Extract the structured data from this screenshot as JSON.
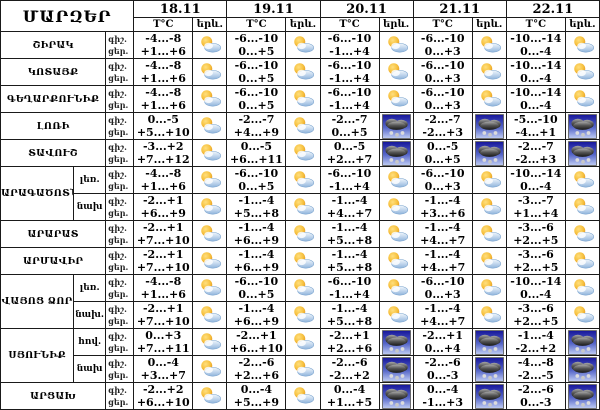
{
  "table": {
    "title": "ՄԱՐԶԵՐ",
    "dates": [
      "18.11",
      "19.11",
      "20.11",
      "21.11",
      "22.11"
    ],
    "col_temp_label": "T°C",
    "col_phenomenon_label": "երև.",
    "night_label": "գիշ.",
    "day_label": "ցեր.",
    "icon_legend": {
      "pc": "partly-cloudy",
      "snow": "snow-shower"
    },
    "colors": {
      "border": "#1a1a1a",
      "background": "#ffffff",
      "sun": "#f7c240",
      "cloud_light": "#c9dcf1",
      "snow_bg_top": "#16169a",
      "snow_bg_bottom": "#c0cdf3",
      "snow_cloud": "#3a3a3a"
    },
    "groups": [
      {
        "region": "ՇԻՐԱԿ",
        "rows": [
          {
            "sub": "",
            "night": [
              "-4...-8",
              "-6...-10",
              "-6...-10",
              "-6...-10",
              "-10...-14"
            ],
            "day": [
              "+1...+6",
              "0...+5",
              "-1...+4",
              "0...+3",
              "0...-4"
            ],
            "icons": [
              "pc",
              "pc",
              "pc",
              "pc",
              "pc"
            ]
          }
        ]
      },
      {
        "region": "ԿՈՏԱՅՔ",
        "rows": [
          {
            "sub": "",
            "night": [
              "-4...-8",
              "-6...-10",
              "-6...-10",
              "-6...-10",
              "-10...-14"
            ],
            "day": [
              "+1...+6",
              "0...+5",
              "-1...+4",
              "0...+3",
              "0...-4"
            ],
            "icons": [
              "pc",
              "pc",
              "pc",
              "pc",
              "pc"
            ]
          }
        ]
      },
      {
        "region": "ԳԵՂԱՐՔՈՒՆԻՔ",
        "rows": [
          {
            "sub": "",
            "night": [
              "-4...-8",
              "-6...-10",
              "-6...-10",
              "-6...-10",
              "-10...-14"
            ],
            "day": [
              "+1...+6",
              "0...+5",
              "-1...+4",
              "0...+3",
              "0...-4"
            ],
            "icons": [
              "pc",
              "pc",
              "pc",
              "pc",
              "pc"
            ]
          }
        ]
      },
      {
        "region": "ԼՈՌԻ",
        "rows": [
          {
            "sub": "",
            "night": [
              "0...-5",
              "-2...-7",
              "-2...-7",
              "-2...-7",
              "-5...-10"
            ],
            "day": [
              "+5...+10",
              "+4...+9",
              "0...+5",
              "-2...+3",
              "-4...+1"
            ],
            "icons": [
              "pc",
              "pc",
              "snow",
              "snow",
              "snow"
            ]
          }
        ]
      },
      {
        "region": "ՏԱՎՈՒՇ",
        "rows": [
          {
            "sub": "",
            "night": [
              "-3...+2",
              "0...-5",
              "0...-5",
              "0...-5",
              "-2...-7"
            ],
            "day": [
              "+7...+12",
              "+6...+11",
              "+2...+7",
              "0...+5",
              "-2...+3"
            ],
            "icons": [
              "pc",
              "pc",
              "snow",
              "snow",
              "snow"
            ]
          }
        ]
      },
      {
        "region": "ԱՐԱԳԱԾՈՏՆ",
        "rows": [
          {
            "sub": "լեռ.",
            "night": [
              "-4...-8",
              "-6...-10",
              "-6...-10",
              "-6...-10",
              "-10...-14"
            ],
            "day": [
              "+1...+6",
              "0...+5",
              "-1...+4",
              "0...+3",
              "0...-4"
            ],
            "icons": [
              "pc",
              "pc",
              "pc",
              "pc",
              "pc"
            ]
          },
          {
            "sub": "նախ",
            "night": [
              "-2...+1",
              "-1...-4",
              "-1...-4",
              "-1...-4",
              "-3...-7"
            ],
            "day": [
              "+6...+9",
              "+5...+8",
              "+4...+7",
              "+3...+6",
              "+1...+4"
            ],
            "icons": [
              "pc",
              "pc",
              "pc",
              "pc",
              "pc"
            ]
          }
        ]
      },
      {
        "region": "ԱՐԱՐԱՏ",
        "rows": [
          {
            "sub": "",
            "night": [
              "-2...+1",
              "-1...-4",
              "-1...-4",
              "-1...-4",
              "-3...-6"
            ],
            "day": [
              "+7...+10",
              "+6...+9",
              "+5...+8",
              "+4...+7",
              "+2...+5"
            ],
            "icons": [
              "pc",
              "pc",
              "pc",
              "pc",
              "pc"
            ]
          }
        ]
      },
      {
        "region": "ԱՐՄԱՎԻՐ",
        "rows": [
          {
            "sub": "",
            "night": [
              "-2...+1",
              "-1...-4",
              "-1...-4",
              "-1...-4",
              "-3...-6"
            ],
            "day": [
              "+7...+10",
              "+6...+9",
              "+5...+8",
              "+4...+7",
              "+2...+5"
            ],
            "icons": [
              "pc",
              "pc",
              "pc",
              "pc",
              "pc"
            ]
          }
        ]
      },
      {
        "region": "ՎԱՅՈՑ ՁՈՐ",
        "rows": [
          {
            "sub": "լեռ.",
            "night": [
              "-4...-8",
              "-6...-10",
              "-6...-10",
              "-6...-10",
              "-10...-14"
            ],
            "day": [
              "+1...+6",
              "0...+5",
              "-1...+4",
              "0...+3",
              "0...-4"
            ],
            "icons": [
              "pc",
              "pc",
              "pc",
              "pc",
              "pc"
            ]
          },
          {
            "sub": "նախ.",
            "night": [
              "-2...+1",
              "-1...-4",
              "-1...-4",
              "-1...-4",
              "-3...-6"
            ],
            "day": [
              "+7...+10",
              "+6...+9",
              "+5...+8",
              "+4...+7",
              "+2...+5"
            ],
            "icons": [
              "pc",
              "pc",
              "pc",
              "pc",
              "pc"
            ]
          }
        ]
      },
      {
        "region": "ՍՅՈՒՆԻՔ",
        "rows": [
          {
            "sub": "հով.",
            "night": [
              "0...+3",
              "-2...+1",
              "-2...+1",
              "-2...+1",
              "-1...-4"
            ],
            "day": [
              "+7...+11",
              "+6...+10",
              "+2...+6",
              "0...+4",
              "-2...+2"
            ],
            "icons": [
              "pc",
              "pc",
              "snow",
              "snow",
              "snow"
            ]
          },
          {
            "sub": "նախ",
            "night": [
              "0...-4",
              "-2...-6",
              "-2...-6",
              "-2...-6",
              "-4...-8"
            ],
            "day": [
              "+3...+7",
              "+2...+6",
              "-2...+2",
              "0...-3",
              "-2...-5"
            ],
            "icons": [
              "pc",
              "pc",
              "snow",
              "snow",
              "snow"
            ]
          }
        ]
      },
      {
        "region": "ԱՐՑԱԽ",
        "rows": [
          {
            "sub": "",
            "night": [
              "-2...+2",
              "0...-4",
              "0...-4",
              "0...-4",
              "-2...-6"
            ],
            "day": [
              "+6...+10",
              "+5...+9",
              "+1...+5",
              "-1...+3",
              "0...-3"
            ],
            "icons": [
              "pc",
              "pc",
              "snow",
              "snow",
              "snow"
            ]
          }
        ]
      }
    ]
  }
}
